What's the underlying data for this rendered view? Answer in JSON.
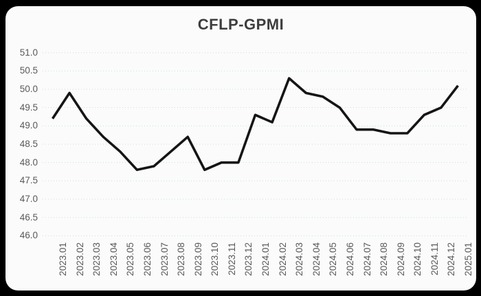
{
  "title": "CFLP-GPMI",
  "colors": {
    "page_background": "#000000",
    "card_background": "#fbfbfb",
    "title_text": "#3d3d3d",
    "axis_text": "#595959",
    "gridline": "#c8dede",
    "series_line": "#151515"
  },
  "chart_data": {
    "type": "line",
    "title": "CFLP-GPMI",
    "xlabel": "",
    "ylabel": "",
    "ylim": [
      46.0,
      51.0
    ],
    "ytick_step": 0.5,
    "yticks": [
      46.0,
      46.5,
      47.0,
      47.5,
      48.0,
      48.5,
      49.0,
      49.5,
      50.0,
      50.5,
      51.0
    ],
    "grid": "horizontal-dotted",
    "legend": "none",
    "marker": "none",
    "categories": [
      "2023.01",
      "2023.02",
      "2023.03",
      "2023.04",
      "2023.05",
      "2023.06",
      "2023.07",
      "2023.08",
      "2023.09",
      "2023.10",
      "2023.11",
      "2023.12",
      "2024.01",
      "2024.02",
      "2024.03",
      "2024.04",
      "2024.05",
      "2024.06",
      "2024.07",
      "2024.08",
      "2024.09",
      "2024.10",
      "2024.11",
      "2024.12",
      "2025.01"
    ],
    "series": [
      {
        "name": "CFLP-GPMI",
        "values": [
          49.2,
          49.9,
          49.2,
          48.7,
          48.3,
          47.8,
          47.9,
          48.3,
          48.7,
          47.8,
          48.0,
          48.0,
          49.3,
          49.1,
          50.3,
          49.9,
          49.8,
          49.5,
          48.9,
          48.9,
          48.8,
          48.8,
          49.3,
          49.5,
          50.1
        ]
      }
    ]
  }
}
